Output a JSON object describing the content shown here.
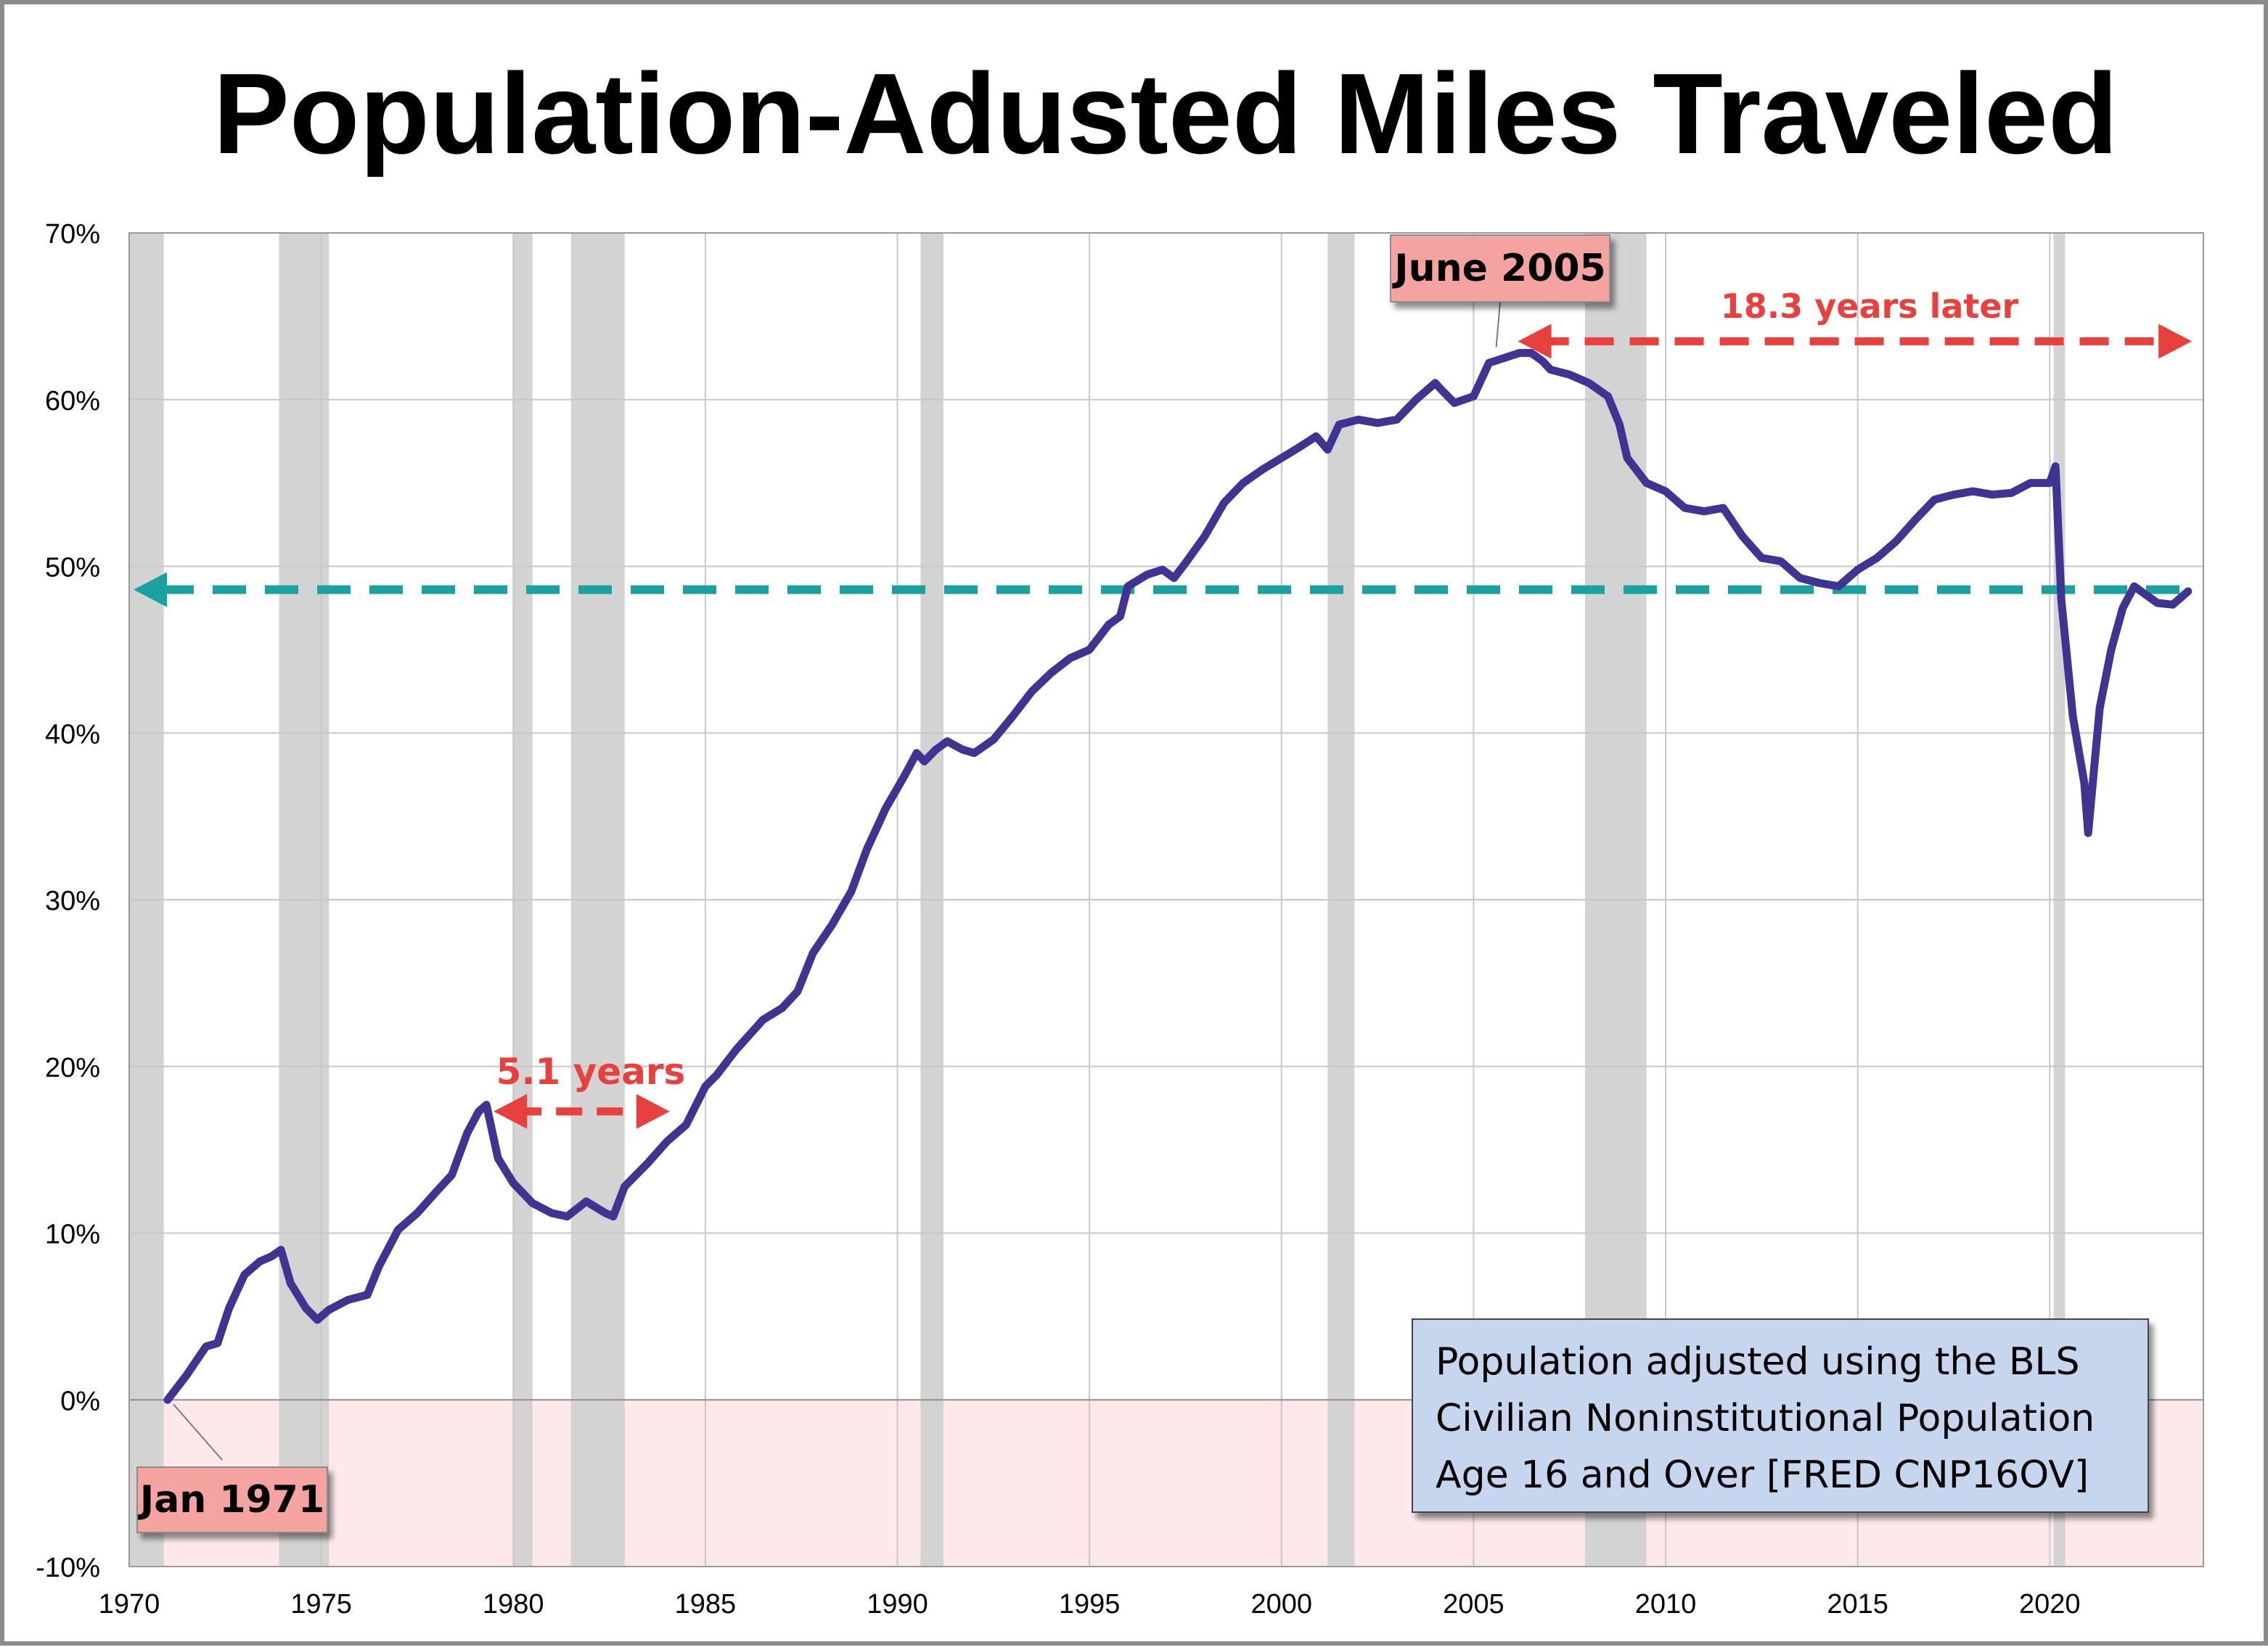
{
  "chart_data": {
    "type": "line",
    "title": "Population-Adusted Miles Traveled",
    "xlabel": "",
    "ylabel": "",
    "xlim": [
      1970,
      2024
    ],
    "ylim": [
      -10,
      70
    ],
    "x_ticks": [
      1970,
      1975,
      1980,
      1985,
      1990,
      1995,
      2000,
      2005,
      2010,
      2015,
      2020
    ],
    "x_tick_labels": [
      "1970",
      "1975",
      "1980",
      "1985",
      "1990",
      "1995",
      "2000",
      "2005",
      "2010",
      "2015",
      "2020"
    ],
    "y_ticks": [
      -10,
      0,
      10,
      20,
      30,
      40,
      50,
      60,
      70
    ],
    "y_tick_labels": [
      "-10%",
      "0%",
      "10%",
      "20%",
      "30%",
      "40%",
      "50%",
      "60%",
      "70%"
    ],
    "grid": true,
    "negative_region_color": "#fde9ea",
    "line_color": "#3f3492",
    "recessions": [
      [
        1970.0,
        1970.9
      ],
      [
        1973.9,
        1975.2
      ],
      [
        1980.0,
        1980.5
      ],
      [
        1981.5,
        1982.9
      ],
      [
        1990.6,
        1991.2
      ],
      [
        2001.2,
        2001.9
      ],
      [
        2007.9,
        2009.5
      ],
      [
        2020.1,
        2020.4
      ]
    ],
    "recession_color": "#d3d3d3",
    "series": [
      {
        "values": [
          [
            1971.0,
            0.0
          ],
          [
            1971.5,
            1.5
          ],
          [
            1972.0,
            3.2
          ],
          [
            1972.3,
            3.4
          ],
          [
            1972.6,
            5.5
          ],
          [
            1973.0,
            7.5
          ],
          [
            1973.4,
            8.3
          ],
          [
            1973.7,
            8.6
          ],
          [
            1973.95,
            9.0
          ],
          [
            1974.2,
            7.0
          ],
          [
            1974.6,
            5.5
          ],
          [
            1974.9,
            4.8
          ],
          [
            1975.2,
            5.4
          ],
          [
            1975.7,
            6.0
          ],
          [
            1976.2,
            6.3
          ],
          [
            1976.5,
            8.0
          ],
          [
            1977.0,
            10.2
          ],
          [
            1977.5,
            11.2
          ],
          [
            1978.0,
            12.5
          ],
          [
            1978.4,
            13.5
          ],
          [
            1978.8,
            16.0
          ],
          [
            1979.1,
            17.3
          ],
          [
            1979.3,
            17.7
          ],
          [
            1979.6,
            14.5
          ],
          [
            1980.0,
            13.0
          ],
          [
            1980.5,
            11.8
          ],
          [
            1981.0,
            11.2
          ],
          [
            1981.4,
            11.0
          ],
          [
            1981.9,
            11.9
          ],
          [
            1982.4,
            11.2
          ],
          [
            1982.6,
            11.0
          ],
          [
            1982.9,
            12.8
          ],
          [
            1983.5,
            14.2
          ],
          [
            1984.0,
            15.5
          ],
          [
            1984.5,
            16.5
          ],
          [
            1985.0,
            18.8
          ],
          [
            1985.3,
            19.5
          ],
          [
            1985.8,
            21.0
          ],
          [
            1986.5,
            22.8
          ],
          [
            1987.0,
            23.5
          ],
          [
            1987.4,
            24.5
          ],
          [
            1987.8,
            26.8
          ],
          [
            1988.3,
            28.5
          ],
          [
            1988.8,
            30.5
          ],
          [
            1989.2,
            33.0
          ],
          [
            1989.7,
            35.5
          ],
          [
            1990.2,
            37.5
          ],
          [
            1990.5,
            38.8
          ],
          [
            1990.7,
            38.3
          ],
          [
            1991.0,
            39.0
          ],
          [
            1991.3,
            39.5
          ],
          [
            1991.7,
            39.0
          ],
          [
            1992.0,
            38.8
          ],
          [
            1992.5,
            39.6
          ],
          [
            1993.0,
            41.0
          ],
          [
            1993.5,
            42.5
          ],
          [
            1994.0,
            43.6
          ],
          [
            1994.5,
            44.5
          ],
          [
            1995.0,
            45.0
          ],
          [
            1995.5,
            46.5
          ],
          [
            1995.8,
            47.0
          ],
          [
            1996.0,
            48.8
          ],
          [
            1996.5,
            49.5
          ],
          [
            1996.9,
            49.8
          ],
          [
            1997.2,
            49.3
          ],
          [
            1997.5,
            50.2
          ],
          [
            1998.0,
            51.8
          ],
          [
            1998.5,
            53.8
          ],
          [
            1999.0,
            55.0
          ],
          [
            1999.5,
            55.8
          ],
          [
            2000.0,
            56.5
          ],
          [
            2000.5,
            57.2
          ],
          [
            2000.9,
            57.8
          ],
          [
            2001.2,
            57.0
          ],
          [
            2001.5,
            58.5
          ],
          [
            2002.0,
            58.8
          ],
          [
            2002.5,
            58.6
          ],
          [
            2003.0,
            58.8
          ],
          [
            2003.5,
            60.0
          ],
          [
            2004.0,
            61.0
          ],
          [
            2004.2,
            60.5
          ],
          [
            2004.5,
            59.8
          ],
          [
            2005.0,
            60.2
          ],
          [
            2005.4,
            62.2
          ],
          [
            2005.8,
            62.5
          ],
          [
            2006.2,
            62.8
          ],
          [
            2006.5,
            62.8
          ],
          [
            2006.8,
            62.3
          ],
          [
            2007.0,
            61.8
          ],
          [
            2007.5,
            61.5
          ],
          [
            2008.0,
            61.0
          ],
          [
            2008.5,
            60.2
          ],
          [
            2008.8,
            58.5
          ],
          [
            2009.0,
            56.5
          ],
          [
            2009.5,
            55.0
          ],
          [
            2010.0,
            54.5
          ],
          [
            2010.5,
            53.5
          ],
          [
            2011.0,
            53.3
          ],
          [
            2011.5,
            53.5
          ],
          [
            2012.0,
            51.8
          ],
          [
            2012.5,
            50.5
          ],
          [
            2013.0,
            50.3
          ],
          [
            2013.5,
            49.3
          ],
          [
            2014.0,
            49.0
          ],
          [
            2014.5,
            48.8
          ],
          [
            2015.0,
            49.8
          ],
          [
            2015.5,
            50.5
          ],
          [
            2016.0,
            51.5
          ],
          [
            2016.5,
            52.8
          ],
          [
            2017.0,
            54.0
          ],
          [
            2017.5,
            54.3
          ],
          [
            2018.0,
            54.5
          ],
          [
            2018.5,
            54.3
          ],
          [
            2019.0,
            54.4
          ],
          [
            2019.5,
            55.0
          ],
          [
            2020.0,
            55.0
          ],
          [
            2020.15,
            56.0
          ],
          [
            2020.3,
            48.0
          ],
          [
            2020.6,
            41.0
          ],
          [
            2020.9,
            37.0
          ],
          [
            2021.0,
            34.0
          ],
          [
            2021.3,
            41.5
          ],
          [
            2021.6,
            45.0
          ],
          [
            2021.9,
            47.5
          ],
          [
            2022.2,
            48.8
          ],
          [
            2022.5,
            48.3
          ],
          [
            2022.8,
            47.8
          ],
          [
            2023.2,
            47.7
          ],
          [
            2023.6,
            48.5
          ]
        ]
      }
    ],
    "reference_line": {
      "y": 48.6,
      "color": "#1aa1a1"
    },
    "annotations": {
      "june2005": {
        "label": "June 2005",
        "x": 2005.4,
        "y": 62.8
      },
      "jan1971": {
        "label": "Jan 1971",
        "x": 1971.0,
        "y": 0.0
      },
      "later": {
        "label": "18.3 years later",
        "from": 2005.4,
        "to": 2023.7,
        "y": 63.5
      },
      "five_years": {
        "label": "5.1 years",
        "from": 1979.3,
        "to": 1984.3,
        "y": 17.3
      }
    },
    "note": {
      "lines": [
        "Population adjusted using the BLS",
        "Civilian Noninstitutional Population",
        "Age 16 and Over  [FRED CNP16OV]"
      ]
    },
    "colors": {
      "callout_fill": "#f4a3a1",
      "arrow_red": "#e8403c",
      "note_fill": "#c6d6ee",
      "grid": "#c8c8c8"
    }
  }
}
